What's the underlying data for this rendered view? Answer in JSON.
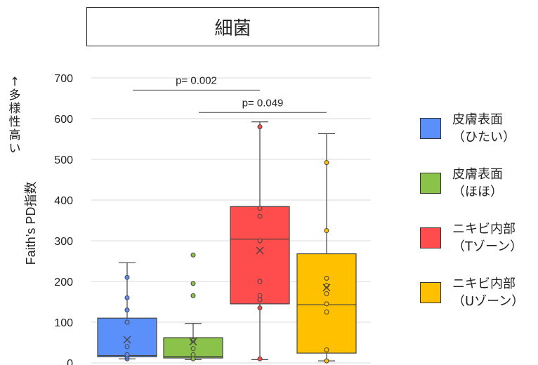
{
  "chart_data": {
    "type": "box",
    "title": "細菌",
    "ylabel": "Faith’s PD指数",
    "ylabel_note": "↑ 多様性 高い",
    "ylim": [
      0,
      700
    ],
    "yticks": [
      0,
      100,
      200,
      300,
      400,
      500,
      600,
      700
    ],
    "grid": true,
    "legend_position": "right",
    "series": [
      {
        "name": "皮膚表面\n（ひたい）",
        "color": "#5B8FF9",
        "min": 10,
        "q1": 15,
        "median": 18,
        "q3": 110,
        "max": 246,
        "mean": 57,
        "points": [
          10,
          15,
          20,
          40,
          100,
          130,
          160,
          210
        ]
      },
      {
        "name": "皮膚表面\n（ほほ）",
        "color": "#8BC34A",
        "min": 8,
        "q1": 12,
        "median": 16,
        "q3": 62,
        "max": 97,
        "mean": 52,
        "points": [
          10,
          20,
          35,
          55,
          165,
          195,
          265
        ]
      },
      {
        "name": "ニキビ内部\n（Tゾーン）",
        "color": "#FF4C4C",
        "min": 8,
        "q1": 145,
        "median": 304,
        "q3": 384,
        "max": 592,
        "mean": 276,
        "points": [
          10,
          135,
          155,
          165,
          200,
          300,
          360,
          380,
          580
        ]
      },
      {
        "name": "ニキビ内部\n（Uゾーン）",
        "color": "#FFC000",
        "min": 5,
        "q1": 24,
        "median": 143,
        "q3": 268,
        "max": 563,
        "mean": 185,
        "points": [
          5,
          32,
          125,
          145,
          170,
          190,
          208,
          325,
          492
        ]
      }
    ],
    "annotations": [
      {
        "text": "p= 0.002",
        "from": 0,
        "to": 2,
        "y": 670
      },
      {
        "text": "p= 0.049",
        "from": 1,
        "to": 3,
        "y": 615
      }
    ]
  }
}
